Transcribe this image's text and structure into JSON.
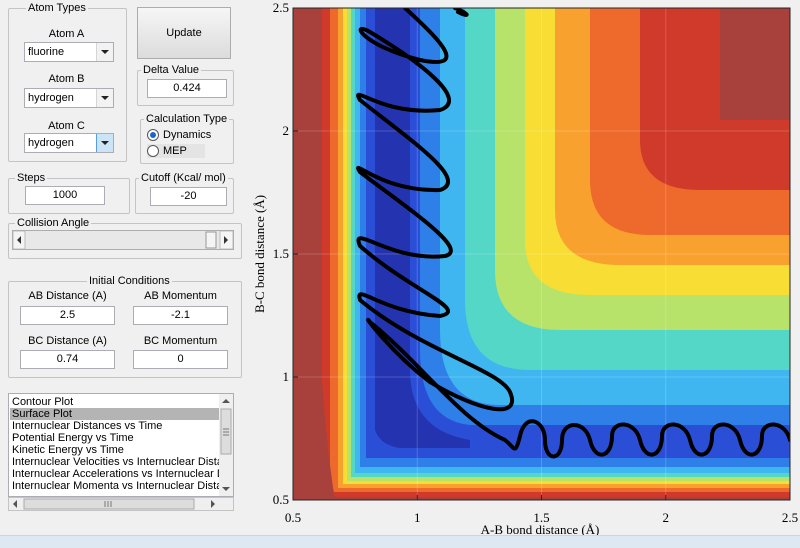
{
  "atom_types": {
    "title": "Atom Types",
    "atom_a": {
      "label": "Atom A",
      "value": "fluorine"
    },
    "atom_b": {
      "label": "Atom B",
      "value": "hydrogen"
    },
    "atom_c": {
      "label": "Atom C",
      "value": "hydrogen"
    }
  },
  "update_button": "Update",
  "delta_value": {
    "title": "Delta Value",
    "value": "0.424"
  },
  "calculation_type": {
    "title": "Calculation Type",
    "options": [
      "Dynamics",
      "MEP"
    ],
    "selected": "Dynamics"
  },
  "steps": {
    "title": "Steps",
    "value": "1000"
  },
  "cutoff": {
    "title": "Cutoff (Kcal/ mol)",
    "value": "-20"
  },
  "collision_angle": {
    "title": "Collision Angle"
  },
  "initial_conditions": {
    "title": "Initial Conditions",
    "ab_distance": {
      "label": "AB Distance (A)",
      "value": "2.5"
    },
    "ab_momentum": {
      "label": "AB Momentum",
      "value": "-2.1"
    },
    "bc_distance": {
      "label": "BC Distance (A)",
      "value": "0.74"
    },
    "bc_momentum": {
      "label": "BC Momentum",
      "value": "0"
    }
  },
  "plot_list": {
    "items": [
      "Contour Plot",
      "Surface Plot",
      "Internuclear Distances vs Time",
      "Potential Energy vs Time",
      "Kinetic Energy vs Time",
      "Internuclear Velocities vs Internuclear Distance",
      "Internuclear Accelerations vs Internuclear Dista",
      "Internuclear Momenta vs Internuclear Distance"
    ],
    "selected": 1
  },
  "plot": {
    "xlabel": "A-B bond distance (Å)",
    "ylabel": "B-C bond distance (Å)",
    "xlim": [
      0.5,
      2.5
    ],
    "ylim": [
      0.5,
      2.5
    ],
    "xticks": [
      0.5,
      1,
      1.5,
      2,
      2.5
    ],
    "yticks": [
      0.5,
      1,
      1.5,
      2,
      2.5
    ],
    "grid": true
  }
}
